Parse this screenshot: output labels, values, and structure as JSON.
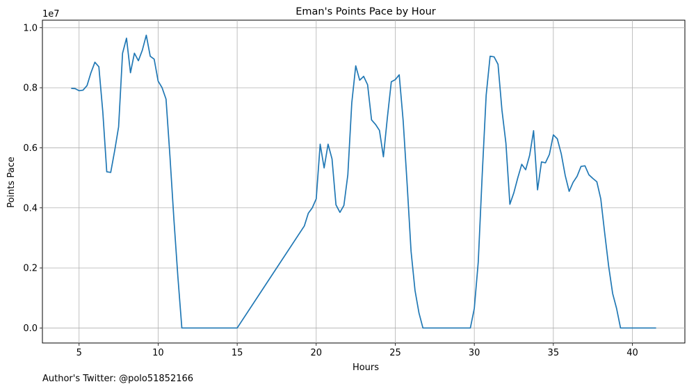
{
  "footer_text": "Author's Twitter: @polo51852166",
  "chart_data": {
    "type": "line",
    "title": "Eman's Points Pace by Hour",
    "xlabel": "Hours",
    "ylabel": "Points Pace",
    "y_offset_label": "1e7",
    "xlim": [
      2.68,
      43.32
    ],
    "ylim": [
      -0.5,
      10.25
    ],
    "y_unit_multiplier": 10000000,
    "grid": true,
    "x_ticks": [
      5,
      10,
      15,
      20,
      25,
      30,
      35,
      40
    ],
    "y_ticks": [
      0.0,
      0.2,
      0.4,
      0.6,
      0.8,
      1.0
    ],
    "y_tick_values": [
      0,
      2,
      4,
      6,
      8,
      10
    ],
    "series": [
      {
        "color": "#1f77b4",
        "x": [
          4.5,
          4.75,
          5.0,
          5.25,
          5.5,
          5.75,
          6.0,
          6.25,
          6.5,
          6.75,
          7.0,
          7.25,
          7.5,
          7.75,
          8.0,
          8.25,
          8.5,
          8.75,
          9.0,
          9.25,
          9.5,
          9.75,
          10.0,
          10.25,
          10.5,
          10.75,
          11.0,
          11.25,
          11.5,
          15.0,
          19.25,
          19.5,
          19.75,
          20.0,
          20.25,
          20.5,
          20.75,
          21.0,
          21.25,
          21.5,
          21.75,
          22.0,
          22.25,
          22.5,
          22.75,
          23.0,
          23.25,
          23.5,
          23.75,
          24.0,
          24.25,
          24.5,
          24.75,
          25.0,
          25.25,
          25.5,
          25.75,
          26.0,
          26.25,
          26.5,
          26.75,
          29.75,
          30.0,
          30.25,
          30.5,
          30.75,
          31.0,
          31.25,
          31.5,
          31.75,
          32.0,
          32.25,
          32.5,
          32.75,
          33.0,
          33.25,
          33.5,
          33.75,
          34.0,
          34.25,
          34.5,
          34.75,
          35.0,
          35.25,
          35.5,
          35.75,
          36.0,
          36.25,
          36.5,
          36.75,
          37.0,
          37.25,
          37.5,
          37.75,
          38.0,
          38.25,
          38.5,
          38.75,
          39.0,
          39.25,
          41.5
        ],
        "y": [
          7.98,
          7.97,
          7.9,
          7.92,
          8.07,
          8.5,
          8.85,
          8.7,
          7.2,
          5.2,
          5.18,
          5.9,
          6.7,
          9.15,
          9.65,
          8.5,
          9.15,
          8.9,
          9.25,
          9.75,
          9.05,
          8.95,
          8.22,
          8.0,
          7.62,
          5.7,
          3.6,
          1.7,
          0.0,
          0.0,
          3.4,
          3.82,
          4.0,
          4.3,
          6.12,
          5.33,
          6.12,
          5.63,
          4.1,
          3.85,
          4.08,
          5.1,
          7.5,
          8.73,
          8.25,
          8.38,
          8.1,
          6.93,
          6.78,
          6.58,
          5.7,
          7.0,
          8.2,
          8.27,
          8.43,
          6.9,
          4.8,
          2.55,
          1.25,
          0.5,
          0.0,
          0.0,
          0.65,
          2.2,
          5.1,
          7.75,
          9.05,
          9.03,
          8.78,
          7.25,
          6.15,
          4.12,
          4.5,
          5.0,
          5.45,
          5.27,
          5.75,
          6.57,
          4.6,
          5.53,
          5.5,
          5.78,
          6.43,
          6.3,
          5.8,
          5.08,
          4.55,
          4.85,
          5.05,
          5.38,
          5.4,
          5.1,
          4.98,
          4.87,
          4.3,
          3.15,
          2.05,
          1.15,
          0.65,
          0.0,
          0.0
        ]
      }
    ]
  }
}
